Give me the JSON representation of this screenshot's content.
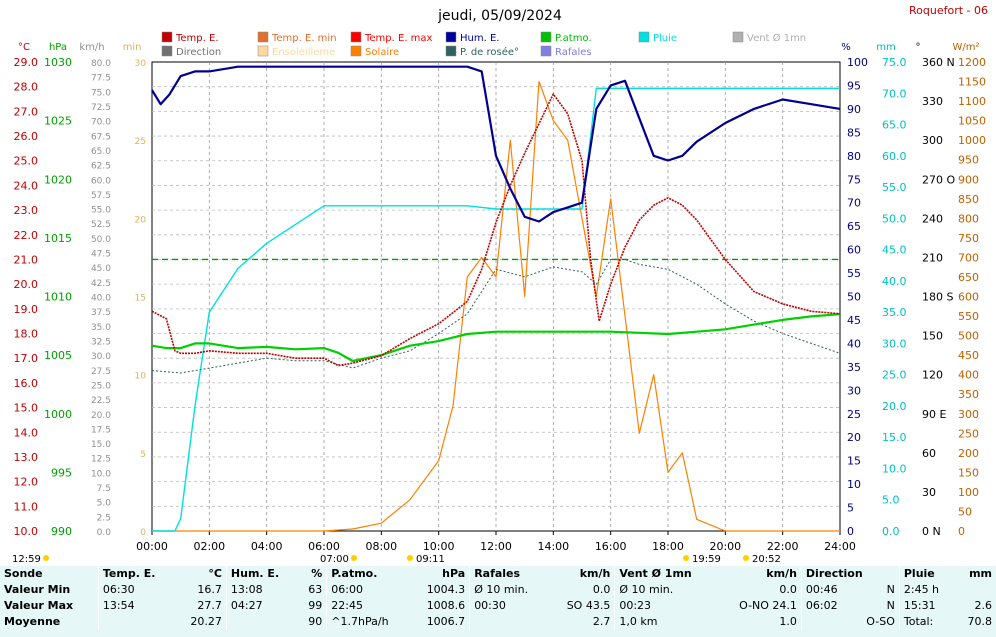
{
  "title": "jeudi, 05/09/2024",
  "station": "Roquefort - 06",
  "legend": [
    {
      "label": "Temp. E.",
      "color": "#c00000"
    },
    {
      "label": "Temp. E. min",
      "color": "#e07030"
    },
    {
      "label": "Temp. E. max",
      "color": "#ff0000"
    },
    {
      "label": "Hum. E.",
      "color": "#0000a0"
    },
    {
      "label": "P.atmo.",
      "color": "#00c000"
    },
    {
      "label": "Pluie",
      "color": "#00e0e0"
    },
    {
      "label": "Vent Ø 1mn",
      "color": "#b0b0b0"
    },
    {
      "label": "Direction",
      "color": "#707070"
    },
    {
      "label": "Ensoleilleme",
      "color": "#ffd8a0"
    },
    {
      "label": "Solaire",
      "color": "#ff8000"
    },
    {
      "label": "P. de rosée°",
      "color": "#306060"
    },
    {
      "label": "Rafales",
      "color": "#8080e0"
    }
  ],
  "axis_units": {
    "temp": "°C",
    "press": "hPa",
    "wind": "km/h",
    "solar_left": "min",
    "hum": "%",
    "rain": "mm",
    "dir": "°",
    "solar": "W/m²"
  },
  "axes": {
    "temp": {
      "ticks": [
        "29.0",
        "28.0",
        "27.0",
        "26.0",
        "25.0",
        "24.0",
        "23.0",
        "22.0",
        "21.0",
        "20.0",
        "19.0",
        "18.0",
        "17.0",
        "16.0",
        "15.0",
        "14.0",
        "13.0",
        "12.0",
        "11.0",
        "10.0"
      ],
      "color": "#c00000"
    },
    "press": {
      "ticks": [
        "1030",
        "1025",
        "1020",
        "1015",
        "1010",
        "1005",
        "1000",
        "995",
        "990"
      ],
      "color": "#00a000"
    },
    "wind": {
      "ticks": [
        "80.0",
        "77.5",
        "75.0",
        "72.5",
        "70.0",
        "67.5",
        "65.0",
        "62.5",
        "60.0",
        "57.5",
        "55.0",
        "52.5",
        "50.0",
        "47.5",
        "45.0",
        "42.5",
        "40.0",
        "37.5",
        "35.0",
        "32.5",
        "30.0",
        "27.5",
        "25.0",
        "22.5",
        "20.0",
        "17.5",
        "15.0",
        "12.5",
        "10.0",
        "7.5",
        "5.0",
        "2.5",
        "0.0"
      ],
      "color": "#909090"
    },
    "solar_min": {
      "ticks": [
        "30",
        "25",
        "20",
        "15",
        "10",
        "5",
        "0"
      ],
      "color": "#e0b060"
    },
    "hum": {
      "ticks": [
        "100",
        "95",
        "90",
        "85",
        "80",
        "75",
        "70",
        "65",
        "60",
        "55",
        "50",
        "45",
        "40",
        "35",
        "30",
        "25",
        "20",
        "15",
        "10",
        "5",
        "0"
      ],
      "color": "#000080"
    },
    "rain": {
      "ticks": [
        "75.0",
        "70.0",
        "65.0",
        "60.0",
        "55.0",
        "50.0",
        "45.0",
        "40.0",
        "35.0",
        "30.0",
        "25.0",
        "20.0",
        "15.0",
        "10.0",
        "5.0",
        "0.0"
      ],
      "color": "#00c0c0"
    },
    "dir": {
      "ticks": [
        "360 N",
        "330",
        "300",
        "270 O",
        "240",
        "210",
        "180 S",
        "150",
        "120",
        "90 E",
        "60",
        "30",
        "0 N"
      ],
      "color": "#000000"
    },
    "solar": {
      "ticks": [
        "1200",
        "1150",
        "1100",
        "1050",
        "1000",
        "950",
        "900",
        "850",
        "800",
        "750",
        "700",
        "650",
        "600",
        "550",
        "500",
        "450",
        "400",
        "350",
        "300",
        "250",
        "200",
        "150",
        "100",
        "50",
        "0"
      ],
      "color": "#c06000"
    }
  },
  "xaxis": {
    "ticks": [
      "00:00",
      "02:00",
      "04:00",
      "06:00",
      "08:00",
      "10:00",
      "12:00",
      "14:00",
      "16:00",
      "18:00",
      "20:00",
      "22:00",
      "24:00"
    ]
  },
  "sun_events": {
    "sunrise_left": "12:59",
    "sunrise": "07:00",
    "solar_noon": "09:11",
    "sunset": "19:59",
    "twilight": "20:52"
  },
  "chart_data": {
    "type": "line",
    "x_unit": "hours",
    "xlim": [
      0,
      24
    ],
    "series": [
      {
        "name": "Temp. E.",
        "axis": "temp",
        "ylim": [
          10,
          29
        ],
        "x": [
          0,
          0.5,
          0.8,
          1,
          1.5,
          2,
          3,
          4,
          5,
          6,
          6.5,
          7,
          8,
          9,
          10,
          11,
          11.5,
          12,
          12.5,
          13,
          13.5,
          14,
          14.5,
          15,
          15.3,
          15.6,
          16,
          16.5,
          17,
          17.5,
          18,
          18.5,
          19,
          20,
          21,
          22,
          23,
          24
        ],
        "y": [
          18.9,
          18.6,
          17.3,
          17.2,
          17.2,
          17.3,
          17.2,
          17.2,
          17.0,
          17.0,
          16.7,
          16.8,
          17.1,
          17.8,
          18.4,
          19.3,
          20.6,
          22.5,
          24.0,
          25.3,
          26.5,
          27.7,
          26.9,
          25.0,
          21.0,
          18.5,
          20.0,
          21.5,
          22.6,
          23.2,
          23.5,
          23.2,
          22.6,
          21.0,
          19.7,
          19.2,
          18.9,
          18.8
        ]
      },
      {
        "name": "Hum. E.",
        "axis": "hum",
        "ylim": [
          0,
          100
        ],
        "x": [
          0,
          0.3,
          0.6,
          1,
          1.5,
          2,
          3,
          4,
          5,
          6,
          7,
          8,
          9,
          10,
          10.5,
          11,
          11.5,
          12,
          12.5,
          13,
          13.5,
          14,
          14.5,
          15,
          15.5,
          16,
          16.5,
          17,
          17.5,
          18,
          18.5,
          19,
          20,
          21,
          22,
          23,
          24
        ],
        "y": [
          94,
          91,
          93,
          97,
          98,
          98,
          99,
          99,
          99,
          99,
          99,
          99,
          99,
          99,
          99,
          99,
          98,
          80,
          73,
          67,
          66,
          68,
          69,
          70,
          90,
          95,
          96,
          88,
          80,
          79,
          80,
          83,
          87,
          90,
          92,
          91,
          90
        ]
      },
      {
        "name": "P.atmo.",
        "axis": "press",
        "ylim": [
          990,
          1030
        ],
        "x": [
          0,
          0.5,
          1,
          1.5,
          2,
          3,
          4,
          5,
          6,
          6.5,
          7,
          8,
          9,
          10,
          11,
          12,
          13,
          14,
          15,
          16,
          17,
          18,
          19,
          20,
          21,
          22,
          23,
          24
        ],
        "y": [
          1005.8,
          1005.6,
          1005.6,
          1006.0,
          1006.0,
          1005.6,
          1005.7,
          1005.5,
          1005.6,
          1005.2,
          1004.5,
          1005.0,
          1005.8,
          1006.2,
          1006.8,
          1007.0,
          1007.0,
          1007.0,
          1007.0,
          1007.0,
          1006.9,
          1006.8,
          1007.0,
          1007.2,
          1007.6,
          1008.0,
          1008.3,
          1008.5
        ]
      },
      {
        "name": "Pluie",
        "axis": "rain",
        "ylim": [
          0,
          75
        ],
        "x": [
          0,
          0.8,
          1,
          1.5,
          2,
          3,
          4,
          5,
          6,
          7,
          8,
          9,
          10,
          11,
          12,
          13,
          14,
          15,
          15.5,
          16,
          24
        ],
        "y": [
          0,
          0,
          2,
          20,
          35,
          42,
          46,
          49,
          52,
          52,
          52,
          52,
          52,
          52,
          51.5,
          51.5,
          51.5,
          51.5,
          70.8,
          70.8,
          70.8
        ]
      },
      {
        "name": "Solaire",
        "axis": "solar",
        "ylim": [
          0,
          1200
        ],
        "x": [
          0,
          6,
          7,
          8,
          9,
          10,
          10.5,
          11,
          11.5,
          12,
          12.5,
          13,
          13.5,
          14,
          14.5,
          15,
          15.5,
          16,
          16.5,
          17,
          17.5,
          18,
          18.5,
          19,
          20,
          24
        ],
        "y": [
          0,
          0,
          5,
          20,
          80,
          180,
          320,
          650,
          700,
          650,
          1000,
          600,
          1150,
          1050,
          1000,
          800,
          600,
          850,
          550,
          250,
          400,
          150,
          200,
          30,
          0,
          0
        ]
      },
      {
        "name": "P. de rosée°",
        "axis": "temp",
        "ylim": [
          10,
          29
        ],
        "x": [
          0,
          1,
          2,
          3,
          4,
          5,
          6,
          7,
          8,
          9,
          10,
          11,
          12,
          13,
          14,
          15,
          15.5,
          16,
          16.5,
          17,
          18,
          19,
          20,
          21,
          22,
          23,
          24
        ],
        "y": [
          16.5,
          16.4,
          16.6,
          16.8,
          17.0,
          16.9,
          16.9,
          16.6,
          17.0,
          17.3,
          18.0,
          18.8,
          20.6,
          20.3,
          20.7,
          20.5,
          20.0,
          21.0,
          21.0,
          20.8,
          20.6,
          20.0,
          19.2,
          18.5,
          18.0,
          17.6,
          17.2
        ]
      }
    ],
    "reference_lines": [
      {
        "axis": "temp",
        "y": 21.0,
        "color": "#00a000",
        "style": "dashed"
      }
    ]
  },
  "stats": {
    "headers": [
      "Sonde",
      "Temp. E.",
      "°C",
      "Hum. E.",
      "%",
      "P.atmo.",
      "hPa",
      "Rafales",
      "km/h",
      "Vent Ø 1mn",
      "km/h",
      "Direction",
      "Pluie",
      "mm"
    ],
    "rows": [
      [
        "Valeur Min",
        "06:30",
        "16.7",
        "13:08",
        "63",
        "06:00",
        "1004.3",
        "Ø 10 min.",
        "0.0",
        "Ø 10 min.",
        "0.0",
        "00:46",
        "N",
        "2:45 h",
        ""
      ],
      [
        "Valeur Max",
        "13:54",
        "27.7",
        "04:27",
        "99",
        "22:45",
        "1008.6",
        "00:30",
        "SO 43.5",
        "00:23",
        "O-NO 24.1",
        "06:02",
        "N",
        "15:31",
        "2.6"
      ],
      [
        "Moyenne",
        "",
        "20.27",
        "",
        "90",
        "^1.7hPa/h",
        "1006.7",
        "",
        "2.7",
        "1,0 km",
        "1.0",
        "",
        "O-SO",
        "Total:",
        "70.8"
      ]
    ]
  }
}
